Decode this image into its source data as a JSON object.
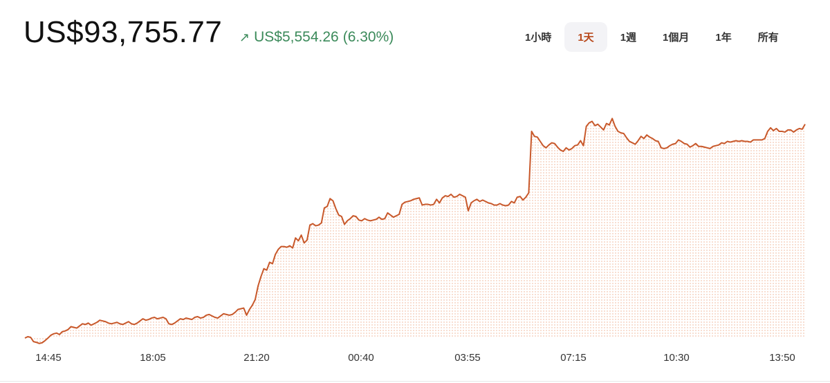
{
  "header": {
    "price": "US$93,755.77",
    "change": "US$5,554.26",
    "change_pct": "(6.30%)",
    "change_icon": "arrow-up-right-icon",
    "change_color": "#3b8a5a"
  },
  "ranges": [
    {
      "label": "1小時",
      "active": false
    },
    {
      "label": "1天",
      "active": true
    },
    {
      "label": "1週",
      "active": false
    },
    {
      "label": "1個月",
      "active": false
    },
    {
      "label": "1年",
      "active": false
    },
    {
      "label": "所有",
      "active": false
    }
  ],
  "colors": {
    "line": "#c8582a",
    "fill_dots": "#f3c6b0",
    "active_tab": "#b8481b"
  },
  "chart_data": {
    "type": "area",
    "title": "",
    "xlabel": "",
    "ylabel": "",
    "x_ticks": [
      "14:45",
      "18:05",
      "21:20",
      "00:40",
      "03:55",
      "07:15",
      "10:30",
      "13:50"
    ],
    "ylim": [
      87500,
      95000
    ],
    "grid": false,
    "series": [
      {
        "values": [
          87480,
          87520,
          87500,
          87380,
          87360,
          87330,
          87350,
          87410,
          87480,
          87560,
          87600,
          87620,
          87580,
          87660,
          87680,
          87720,
          87800,
          87780,
          87760,
          87820,
          87880,
          87860,
          87900,
          87840,
          87880,
          87920,
          87980,
          87960,
          87940,
          87900,
          87880,
          87900,
          87920,
          87880,
          87860,
          87900,
          87940,
          87880,
          87860,
          87900,
          87960,
          88020,
          87980,
          88000,
          88040,
          88060,
          88020,
          88040,
          88060,
          88020,
          87880,
          87860,
          87900,
          87960,
          88020,
          88000,
          88040,
          88020,
          88000,
          88060,
          88080,
          88040,
          88060,
          88120,
          88140,
          88100,
          88060,
          88040,
          88100,
          88160,
          88140,
          88120,
          88140,
          88200,
          88280,
          88300,
          88320,
          88120,
          88280,
          88400,
          88560,
          88940,
          89200,
          89420,
          89380,
          89600,
          89560,
          89820,
          89960,
          90040,
          90040,
          90020,
          90060,
          90000,
          90280,
          90200,
          90360,
          90140,
          90220,
          90640,
          90680,
          90620,
          90640,
          90700,
          91120,
          91160,
          91380,
          91320,
          91100,
          90920,
          90880,
          90660,
          90760,
          90820,
          90900,
          90880,
          90780,
          90760,
          90820,
          90780,
          90760,
          90780,
          90800,
          90860,
          90800,
          90820,
          90980,
          90920,
          90860,
          90900,
          90940,
          91220,
          91280,
          91300,
          91320,
          91360,
          91380,
          91400,
          91200,
          91220,
          91220,
          91200,
          91220,
          91360,
          91260,
          91400,
          91460,
          91440,
          91500,
          91420,
          91440,
          91500,
          91460,
          91420,
          91040,
          91260,
          91320,
          91360,
          91300,
          91340,
          91300,
          91260,
          91240,
          91200,
          91200,
          91240,
          91200,
          91180,
          91200,
          91300,
          91260,
          91420,
          91440,
          91340,
          91420,
          91540,
          93260,
          93120,
          93100,
          92980,
          92860,
          92800,
          92880,
          92940,
          92920,
          92820,
          92740,
          92700,
          92800,
          92740,
          92780,
          92860,
          92880,
          93000,
          92860,
          93400,
          93500,
          93540,
          93420,
          93460,
          93380,
          93300,
          93480,
          93440,
          93620,
          93400,
          93260,
          93220,
          93200,
          93080,
          92980,
          92940,
          92900,
          93000,
          93120,
          93060,
          93160,
          93100,
          93060,
          93000,
          92980,
          92800,
          92780,
          92800,
          92860,
          92900,
          92920,
          93020,
          92980,
          92920,
          92900,
          92820,
          92860,
          92920,
          92840,
          92840,
          92820,
          92800,
          92780,
          92840,
          92860,
          92880,
          92940,
          92920,
          92980,
          92960,
          92980,
          93000,
          92980,
          93000,
          92980,
          92980,
          92960,
          93020,
          93020,
          93020,
          93020,
          93060,
          93260,
          93360,
          93280,
          93340,
          93260,
          93260,
          93240,
          93300,
          93300,
          93240,
          93300,
          93340,
          93320,
          93460
        ]
      }
    ]
  }
}
